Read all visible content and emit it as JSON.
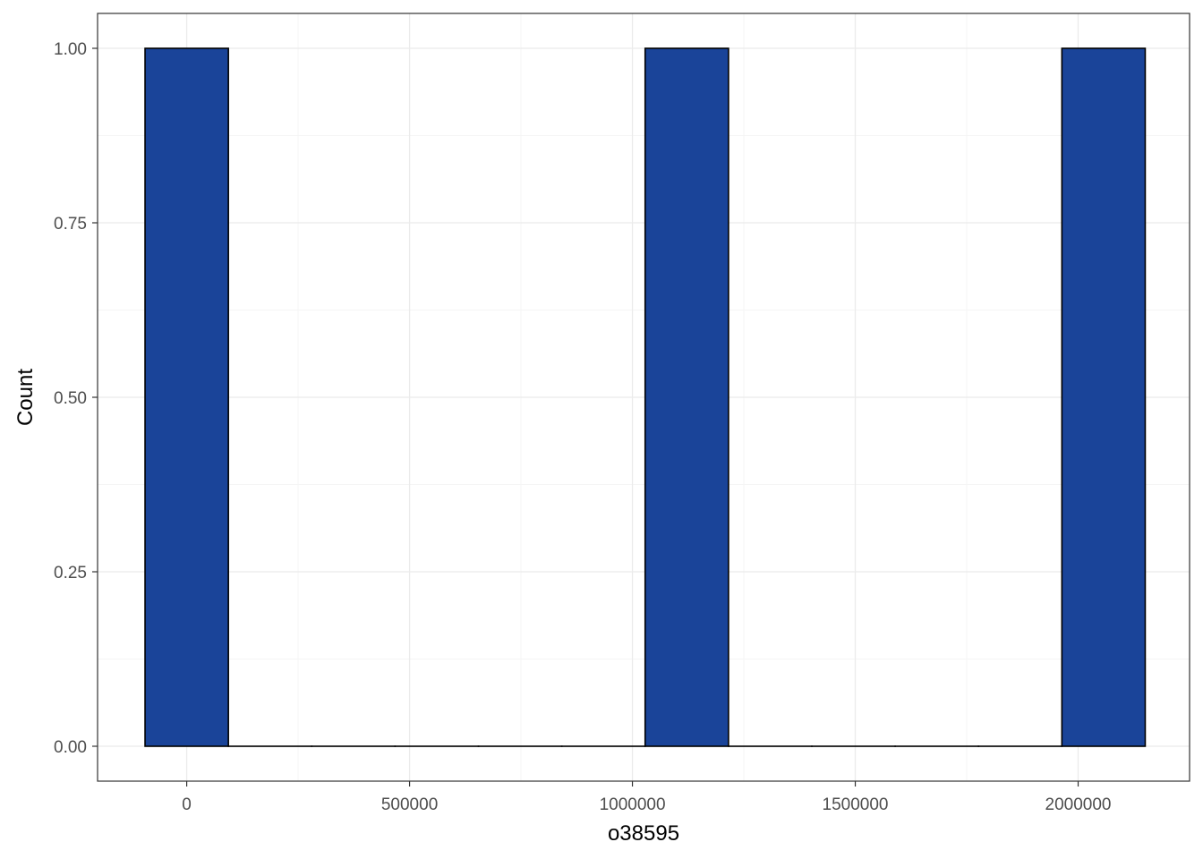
{
  "chart_data": {
    "type": "bar",
    "subtype": "histogram",
    "xlabel": "o38595",
    "ylabel": "Count",
    "xlim": [
      -200000,
      2250000
    ],
    "ylim": [
      -0.05,
      1.05
    ],
    "x_ticks": [
      0,
      500000,
      1000000,
      1500000,
      2000000
    ],
    "x_tick_labels": [
      "0",
      "500000",
      "1000000",
      "1500000",
      "2000000"
    ],
    "y_ticks": [
      0,
      0.25,
      0.5,
      0.75,
      1
    ],
    "y_tick_labels": [
      "0.00",
      "0.25",
      "0.50",
      "0.75",
      "1.00"
    ],
    "bin_width": 187000,
    "bins": [
      {
        "x_start": -93500,
        "x_end": 93500,
        "count": 1
      },
      {
        "x_start": 93500,
        "x_end": 280500,
        "count": 0
      },
      {
        "x_start": 280500,
        "x_end": 467500,
        "count": 0
      },
      {
        "x_start": 467500,
        "x_end": 654500,
        "count": 0
      },
      {
        "x_start": 654500,
        "x_end": 841500,
        "count": 0
      },
      {
        "x_start": 841500,
        "x_end": 1028500,
        "count": 0
      },
      {
        "x_start": 1028500,
        "x_end": 1215500,
        "count": 1
      },
      {
        "x_start": 1215500,
        "x_end": 1402500,
        "count": 0
      },
      {
        "x_start": 1402500,
        "x_end": 1589500,
        "count": 0
      },
      {
        "x_start": 1589500,
        "x_end": 1776500,
        "count": 0
      },
      {
        "x_start": 1776500,
        "x_end": 1963500,
        "count": 0
      },
      {
        "x_start": 1963500,
        "x_end": 2150500,
        "count": 1
      }
    ],
    "grid": true,
    "legend": "none",
    "colors": {
      "bar_fill": "#1a4499",
      "bar_outline": "#000000",
      "grid_major": "#ebebeb",
      "grid_minor": "#f5f5f5",
      "panel_border": "#333333"
    }
  }
}
